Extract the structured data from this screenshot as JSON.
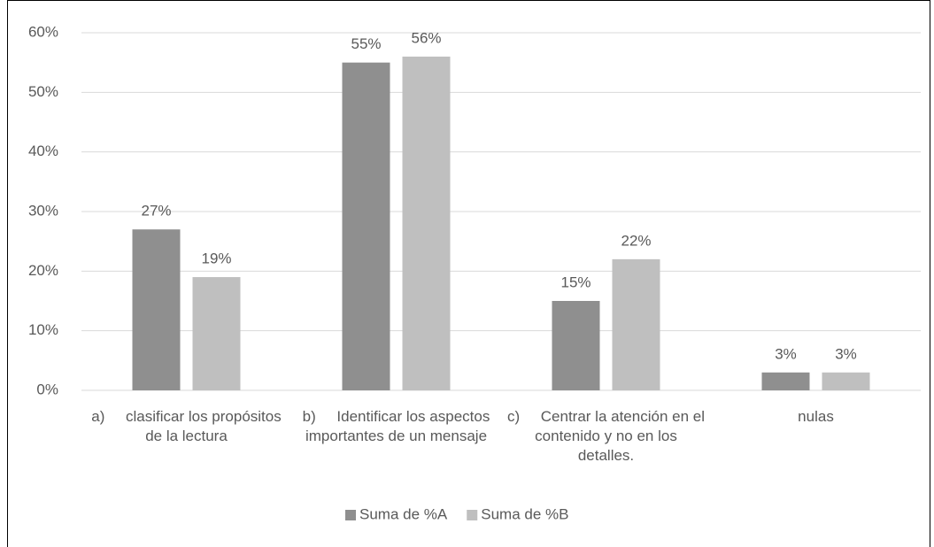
{
  "chart_data": {
    "type": "bar",
    "categories": [
      "a)     clasificar los propósitos de la lectura",
      "b)     Identificar los aspectos importantes de un mensaje",
      "c)     Centrar la atención en el contenido y no en los detalles.",
      "nulas"
    ],
    "series": [
      {
        "name": "Suma de %A",
        "color": "#8f8f8f",
        "values": [
          27,
          55,
          15,
          3
        ],
        "value_labels": [
          "27%",
          "55%",
          "15%",
          "3%"
        ]
      },
      {
        "name": "Suma de %B",
        "color": "#bfbfbf",
        "values": [
          19,
          56,
          22,
          3
        ],
        "value_labels": [
          "19%",
          "56%",
          "22%",
          "3%"
        ]
      }
    ],
    "ylim": [
      0,
      60
    ],
    "yticks": [
      {
        "value": 0,
        "label": "0%"
      },
      {
        "value": 10,
        "label": "10%"
      },
      {
        "value": 20,
        "label": "20%"
      },
      {
        "value": 30,
        "label": "30%"
      },
      {
        "value": 40,
        "label": "40%"
      },
      {
        "value": 50,
        "label": "50%"
      },
      {
        "value": 60,
        "label": "60%"
      }
    ],
    "grid": true,
    "legend": "bottom"
  }
}
